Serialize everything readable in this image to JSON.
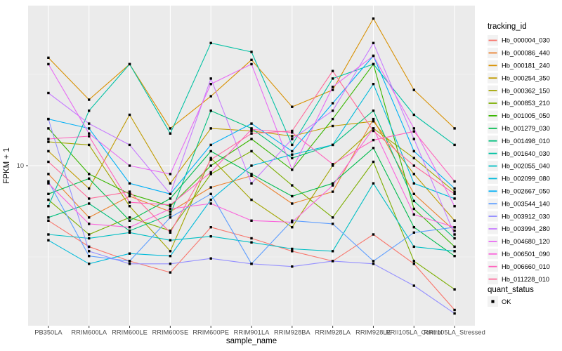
{
  "figure": {
    "background": "#FFFFFF",
    "panel_background": "#EBEBEB",
    "grid_color": "#FFFFFF",
    "axis_text_color": "#4D4D4D",
    "tick_mark_color": "#333333",
    "point_color": "#000000",
    "legend_key_background": "#F2F2F2"
  },
  "chart_data": {
    "type": "line",
    "title": "",
    "xlabel": "sample_name",
    "ylabel": "FPKM + 1",
    "y_scale": "log10",
    "ylim": [
      1.33,
      75
    ],
    "y_ticks": [
      10
    ],
    "y_minor_ticks": [
      3.162,
      31.62
    ],
    "grid": true,
    "legend_position": "right",
    "point_shape": "filled-square",
    "categories": [
      "PB350LA",
      "RRIM600LA",
      "RRIM600LE",
      "RRIM600SE",
      "RRIM600PE",
      "RRIM901LA",
      "RRIM928BA",
      "RRIM928LA",
      "RRIM928LE",
      "RRII105LA_Control",
      "RRII105LA_Stressed"
    ],
    "series": [
      {
        "name": "Hb_000004_030",
        "color": "#F8766D",
        "quant_status": "OK",
        "values": [
          5.0,
          3.6,
          3.0,
          2.6,
          4.6,
          4.0,
          3.4,
          3.0,
          4.2,
          2.9,
          1.62
        ]
      },
      {
        "name": "Hb_000086_440",
        "color": "#EA8331",
        "quant_status": "OK",
        "values": [
          9.0,
          5.2,
          6.8,
          5.6,
          7.6,
          8.8,
          6.2,
          7.2,
          18.0,
          7.0,
          4.4
        ]
      },
      {
        "name": "Hb_000181_240",
        "color": "#D89000",
        "quant_status": "OK",
        "values": [
          39.0,
          23.0,
          36.0,
          16.0,
          24.0,
          38.0,
          21.0,
          26.0,
          64.0,
          26.0,
          16.0
        ]
      },
      {
        "name": "Hb_000254_350",
        "color": "#C09B00",
        "quant_status": "OK",
        "values": [
          12.0,
          7.5,
          19.0,
          8.0,
          16.0,
          15.5,
          14.5,
          16.5,
          17.5,
          9.0,
          5.0
        ]
      },
      {
        "name": "Hb_000362_150",
        "color": "#A3A500",
        "quant_status": "OK",
        "values": [
          13.5,
          13.0,
          6.0,
          3.4,
          11.0,
          6.5,
          4.6,
          10.0,
          16.0,
          11.0,
          7.2
        ]
      },
      {
        "name": "Hb_000853_210",
        "color": "#7CAE00",
        "quant_status": "OK",
        "values": [
          6.5,
          4.2,
          5.2,
          4.4,
          9.0,
          12.0,
          7.8,
          5.2,
          10.5,
          3.0,
          2.1
        ]
      },
      {
        "name": "Hb_001005_050",
        "color": "#39B600",
        "quant_status": "OK",
        "values": [
          16.0,
          9.0,
          7.0,
          6.0,
          10.0,
          14.0,
          9.5,
          18.0,
          36.0,
          5.8,
          3.6
        ]
      },
      {
        "name": "Hb_001279_030",
        "color": "#00BB4E",
        "quant_status": "OK",
        "values": [
          7.0,
          8.5,
          5.0,
          6.6,
          12.0,
          9.0,
          6.8,
          8.0,
          12.5,
          4.6,
          3.2
        ]
      },
      {
        "name": "Hb_001498_010",
        "color": "#00BF7D",
        "quant_status": "OK",
        "values": [
          5.2,
          6.2,
          4.4,
          5.4,
          20.0,
          16.0,
          11.0,
          13.0,
          20.0,
          6.4,
          4.0
        ]
      },
      {
        "name": "Hb_001640_030",
        "color": "#00C1A3",
        "quant_status": "OK",
        "values": [
          6.0,
          20.0,
          36.0,
          15.0,
          47.0,
          42.0,
          13.0,
          30.0,
          36.0,
          19.0,
          13.0
        ]
      },
      {
        "name": "Hb_002055_040",
        "color": "#00BFC4",
        "quant_status": "OK",
        "values": [
          4.2,
          4.0,
          4.3,
          3.9,
          4.1,
          3.8,
          3.5,
          3.4,
          8.0,
          3.6,
          3.4
        ]
      },
      {
        "name": "Hb_002099_080",
        "color": "#00BBDA",
        "quant_status": "OK",
        "values": [
          3.9,
          2.9,
          3.3,
          3.2,
          6.5,
          10.0,
          11.5,
          13.0,
          28.0,
          8.0,
          6.6
        ]
      },
      {
        "name": "Hb_002667_050",
        "color": "#00B0F6",
        "quant_status": "OK",
        "values": [
          18.0,
          16.0,
          8.0,
          7.0,
          13.0,
          17.0,
          12.0,
          22.0,
          40.0,
          12.0,
          7.5
        ]
      },
      {
        "name": "Hb_003544_140",
        "color": "#5E9EFF",
        "quant_status": "OK",
        "values": [
          8.2,
          3.2,
          3.0,
          5.2,
          7.0,
          2.9,
          5.0,
          4.8,
          3.0,
          4.3,
          4.6
        ]
      },
      {
        "name": "Hb_003912_030",
        "color": "#9590FF",
        "quant_status": "OK",
        "values": [
          18.0,
          3.4,
          2.9,
          2.9,
          3.1,
          2.9,
          2.8,
          3.0,
          2.9,
          2.2,
          1.55
        ]
      },
      {
        "name": "Hb_003994_280",
        "color": "#C77CFF",
        "quant_status": "OK",
        "values": [
          25.0,
          17.0,
          13.0,
          7.0,
          30.0,
          8.0,
          14.0,
          20.0,
          47.0,
          14.0,
          4.2
        ]
      },
      {
        "name": "Hb_004680_120",
        "color": "#E76BF3",
        "quant_status": "OK",
        "values": [
          36.0,
          15.0,
          10.0,
          9.0,
          28.0,
          36.0,
          9.5,
          27.0,
          40.0,
          16.0,
          6.0
        ]
      },
      {
        "name": "Hb_006501_090",
        "color": "#FA62DB",
        "quant_status": "OK",
        "values": [
          8.0,
          4.8,
          4.6,
          5.8,
          6.2,
          5.0,
          4.9,
          7.8,
          16.0,
          5.4,
          4.6
        ]
      },
      {
        "name": "Hb_006660_010",
        "color": "#FF62BC",
        "quant_status": "OK",
        "values": [
          14.0,
          14.5,
          6.3,
          6.1,
          9.2,
          15.8,
          15.2,
          10.2,
          13.8,
          15.4,
          8.2
        ]
      },
      {
        "name": "Hb_011228_010",
        "color": "#FF6A9A",
        "quant_status": "OK",
        "values": [
          10.5,
          6.6,
          7.2,
          4.3,
          10.8,
          15.0,
          15.5,
          33.0,
          15.5,
          10.0,
          7.0
        ]
      }
    ]
  },
  "legend": {
    "tracking_title": "tracking_id",
    "quant_title": "quant_status",
    "quant_items": [
      {
        "label": "OK",
        "marker": "filled-square",
        "color": "#000000"
      }
    ]
  }
}
